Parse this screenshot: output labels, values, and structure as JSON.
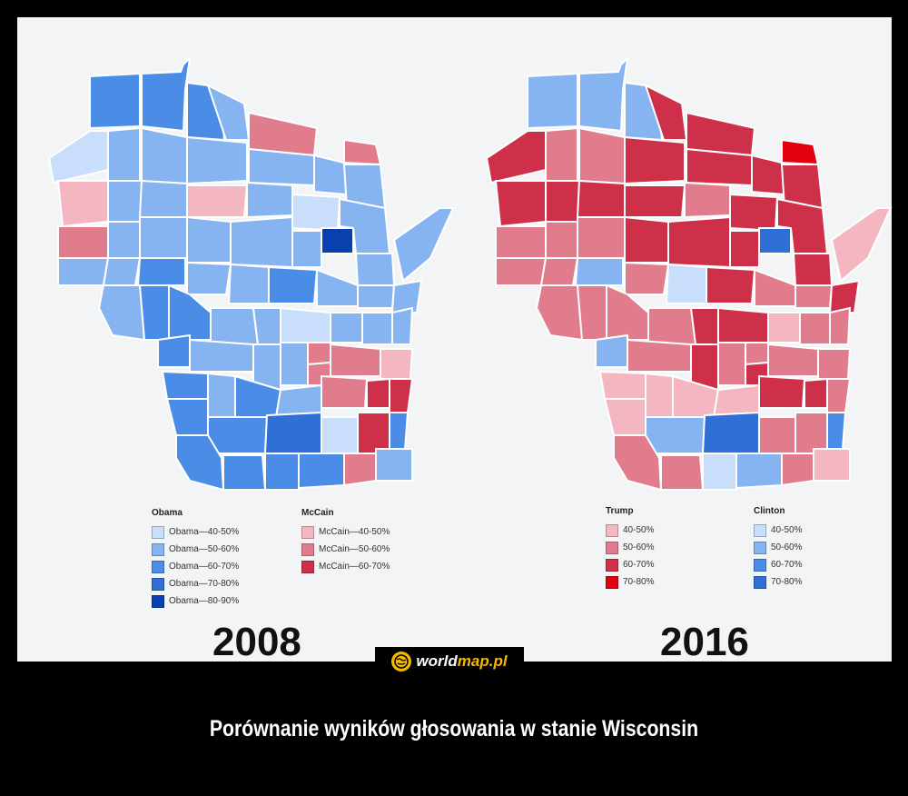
{
  "colors": {
    "blue": [
      "#c9defa",
      "#86b4f0",
      "#4b8ce6",
      "#2f6fd6",
      "#0a3fb0"
    ],
    "red": [
      "#f4b7c2",
      "#e07c8b",
      "#cf3049",
      "#e00010"
    ]
  },
  "map2008": {
    "year": "2008",
    "legend": {
      "obama_title": "Obama",
      "obama_items": [
        "Obama—40-50%",
        "Obama—50-60%",
        "Obama—60-70%",
        "Obama—70-80%",
        "Obama—80-90%"
      ],
      "mccain_title": "McCain",
      "mccain_items": [
        "McCain—40-50%",
        "McCain—50-60%",
        "McCain—60-70%"
      ]
    }
  },
  "map2016": {
    "year": "2016",
    "legend": {
      "trump_title": "Trump",
      "trump_items": [
        "40-50%",
        "50-60%",
        "60-70%",
        "70-80%"
      ],
      "clinton_title": "Clinton",
      "clinton_items": [
        "40-50%",
        "50-60%",
        "60-70%",
        "70-80%"
      ]
    }
  },
  "brand": {
    "part1": "world",
    "part2": "map.pl"
  },
  "caption": "Porównanie wyników głosowania w stanie Wisconsin"
}
